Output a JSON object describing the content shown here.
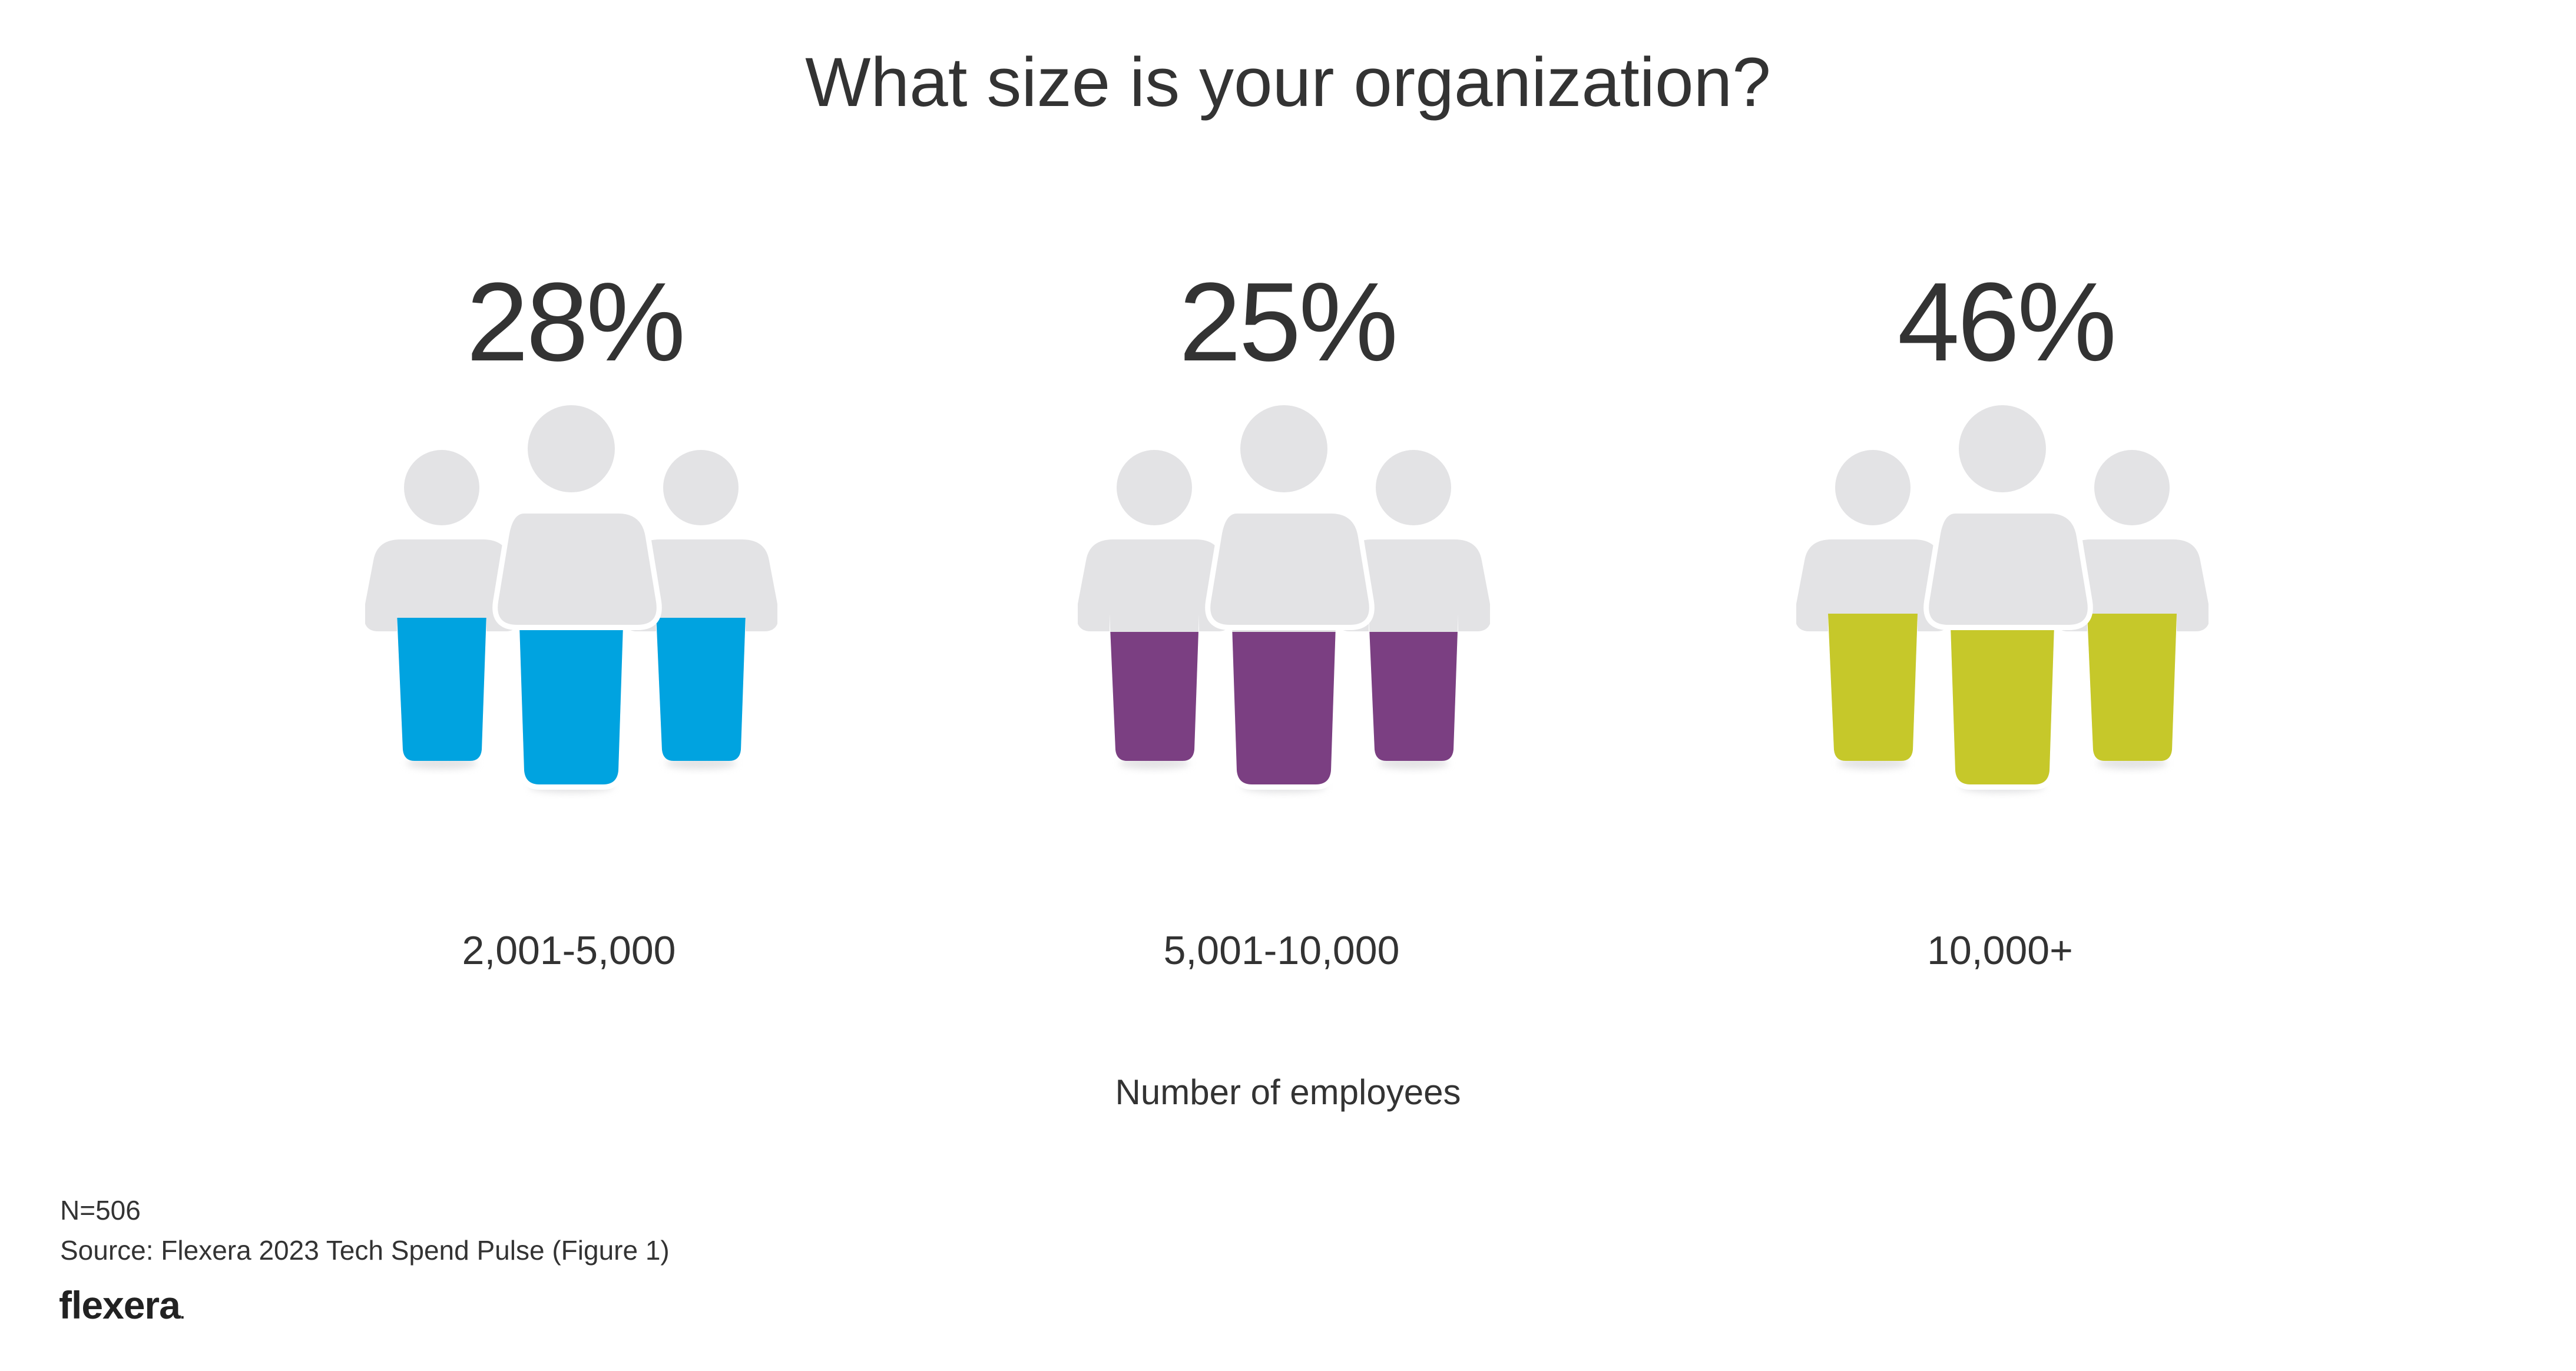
{
  "chart_data": {
    "type": "bar",
    "title": "What size is your organization?",
    "xlabel": "Number of employees",
    "ylabel": "",
    "categories": [
      "2,001-5,000",
      "5,001-10,000",
      "10,000+"
    ],
    "values": [
      28,
      25,
      46
    ],
    "value_labels": [
      "28%",
      "25%",
      "46%"
    ],
    "colors": [
      "#00a3e0",
      "#7b3f82",
      "#c6c82a"
    ],
    "ylim": [
      0,
      100
    ],
    "unit": "%",
    "grid": false,
    "style": "pictogram",
    "base_color": "#e3e3e5"
  },
  "footnote": {
    "sample": "N=506",
    "source": "Source: Flexera 2023 Tech Spend Pulse (Figure 1)"
  },
  "brand": {
    "logo_text": "flexera",
    "logo_mark": "."
  }
}
